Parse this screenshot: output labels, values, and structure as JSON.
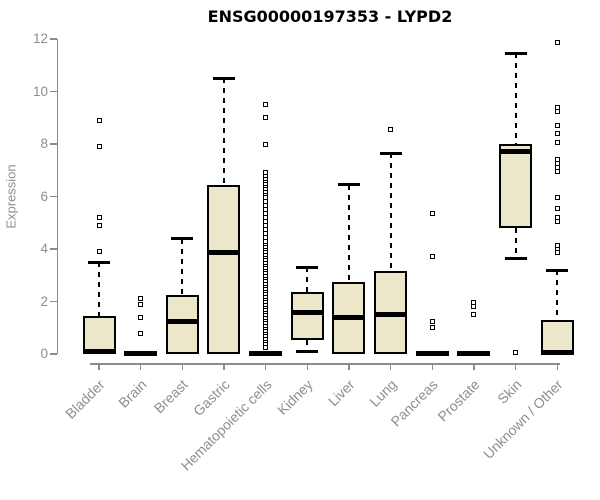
{
  "chart_data": {
    "type": "boxplot",
    "title": "ENSG00000197353 - LYPD2",
    "xlabel": "",
    "ylabel": "Expression",
    "ylim": [
      0,
      12
    ],
    "yticks": [
      0,
      2,
      4,
      6,
      8,
      10,
      12
    ],
    "grid": false,
    "legend": "none",
    "colors": {
      "box_fill": "#ece7cb",
      "box_border": "#000000",
      "median": "#000000",
      "axis": "#8c8c8c",
      "tick_text": "#8e8e8e",
      "title_text": "#000000",
      "background": "#ffffff"
    },
    "categories": [
      "Bladder",
      "Brain",
      "Breast",
      "Gastric",
      "Hematopoietic cells",
      "Kidney",
      "Liver",
      "Lung",
      "Pancreas",
      "Prostate",
      "Skin",
      "Unknown / Other"
    ],
    "boxes": [
      {
        "label": "Bladder",
        "q1": 0,
        "median": 0.08,
        "q3": 1.45,
        "whisker_low": 0,
        "whisker_high": 3.5,
        "outliers": [
          8.9,
          7.9,
          5.2,
          4.9,
          3.9
        ]
      },
      {
        "label": "Brain",
        "q1": 0,
        "median": 0.03,
        "q3": 0.06,
        "whisker_low": 0,
        "whisker_high": 0.06,
        "outliers": [
          2.1,
          1.9,
          1.4,
          0.8
        ]
      },
      {
        "label": "Breast",
        "q1": 0,
        "median": 1.25,
        "q3": 2.25,
        "whisker_low": 0,
        "whisker_high": 4.4,
        "outliers": []
      },
      {
        "label": "Gastric",
        "q1": 0,
        "median": 3.85,
        "q3": 6.45,
        "whisker_low": 0,
        "whisker_high": 10.5,
        "outliers": []
      },
      {
        "label": "Hematopoietic cells",
        "q1": 0,
        "median": 0.03,
        "q3": 0.1,
        "whisker_low": 0,
        "whisker_high": 0.18,
        "outliers": [
          9.5,
          9.0,
          8.0,
          6.9,
          6.75,
          6.65,
          6.55,
          6.45,
          6.35,
          6.25,
          6.15,
          6.05,
          5.95,
          5.8,
          5.65,
          5.5,
          5.35,
          5.2,
          5.05,
          4.9,
          4.75,
          4.6,
          4.45,
          4.3,
          4.15,
          4.05,
          3.95,
          3.85,
          3.75,
          3.65,
          3.55,
          3.45,
          3.35,
          3.25,
          3.15,
          3.05,
          2.95,
          2.85,
          2.75,
          2.65,
          2.55,
          2.45,
          2.35,
          2.25,
          2.15,
          2.05,
          1.95,
          1.85,
          1.75,
          1.65,
          1.55,
          1.45,
          1.35,
          1.25,
          1.15,
          1.05,
          0.95,
          0.85,
          0.75,
          0.65,
          0.55,
          0.45,
          0.35,
          0.25
        ]
      },
      {
        "label": "Kidney",
        "q1": 0.55,
        "median": 1.6,
        "q3": 2.35,
        "whisker_low": 0.08,
        "whisker_high": 3.3,
        "outliers": []
      },
      {
        "label": "Liver",
        "q1": 0,
        "median": 1.4,
        "q3": 2.75,
        "whisker_low": 0,
        "whisker_high": 6.45,
        "outliers": []
      },
      {
        "label": "Lung",
        "q1": 0,
        "median": 1.5,
        "q3": 3.15,
        "whisker_low": 0,
        "whisker_high": 7.65,
        "outliers": [
          8.55
        ]
      },
      {
        "label": "Pancreas",
        "q1": 0,
        "median": 0.03,
        "q3": 0.06,
        "whisker_low": 0,
        "whisker_high": 0.06,
        "outliers": [
          5.35,
          3.7,
          1.25,
          1.0
        ]
      },
      {
        "label": "Prostate",
        "q1": 0,
        "median": 0.03,
        "q3": 0.06,
        "whisker_low": 0,
        "whisker_high": 0.06,
        "outliers": [
          1.95,
          1.8,
          1.5
        ]
      },
      {
        "label": "Skin",
        "q1": 4.8,
        "median": 7.7,
        "q3": 8.0,
        "whisker_low": 3.65,
        "whisker_high": 11.45,
        "outliers": [
          0.05
        ]
      },
      {
        "label": "Unknown / Other",
        "q1": 0,
        "median": 0.07,
        "q3": 1.3,
        "whisker_low": 0,
        "whisker_high": 3.2,
        "outliers": [
          11.85,
          9.4,
          9.25,
          8.7,
          8.4,
          8.05,
          7.4,
          7.25,
          7.1,
          6.95,
          5.95,
          5.55,
          5.2,
          5.05,
          4.15,
          4.0,
          3.85
        ]
      }
    ]
  }
}
